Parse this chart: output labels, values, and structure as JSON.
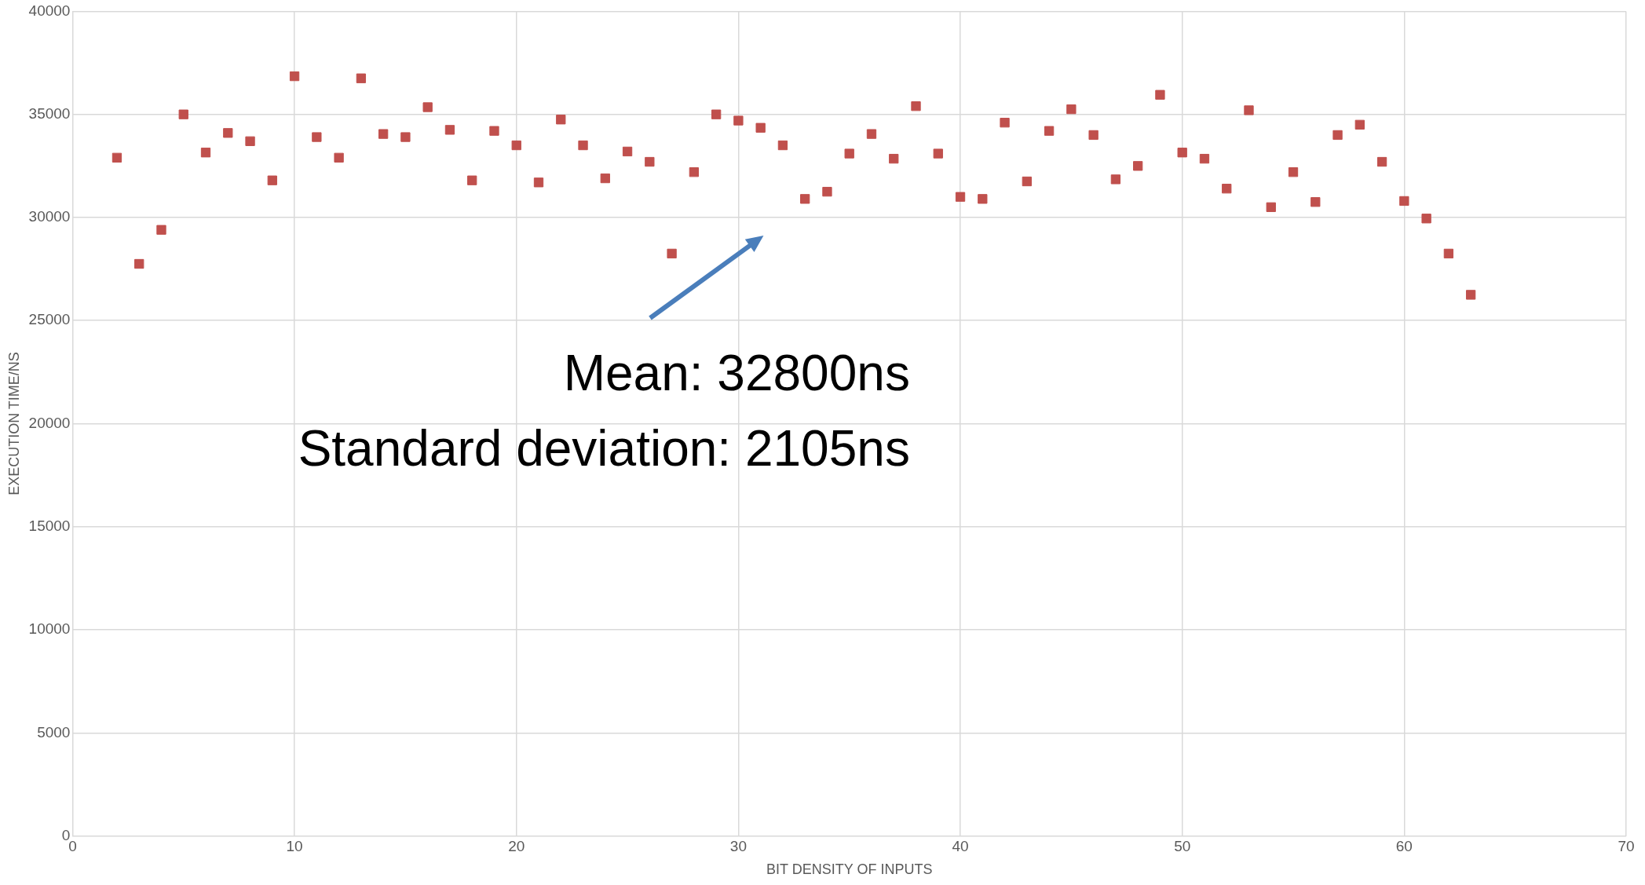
{
  "chart_data": {
    "type": "scatter",
    "xlabel": "BIT DENSITY OF INPUTS",
    "ylabel": "EXECUTION TIME/NS",
    "x": [
      2,
      3,
      4,
      5,
      6,
      7,
      8,
      9,
      10,
      11,
      12,
      13,
      14,
      15,
      16,
      17,
      18,
      19,
      20,
      21,
      22,
      23,
      24,
      25,
      26,
      27,
      28,
      29,
      30,
      31,
      32,
      33,
      34,
      35,
      36,
      37,
      38,
      39,
      40,
      41,
      42,
      43,
      44,
      45,
      46,
      47,
      48,
      49,
      50,
      51,
      52,
      53,
      54,
      55,
      56,
      57,
      58,
      59,
      60,
      61,
      62,
      63
    ],
    "values": [
      32900,
      27750,
      29400,
      35000,
      33150,
      34100,
      33700,
      31800,
      36850,
      33900,
      32900,
      36750,
      34050,
      33900,
      35350,
      34250,
      31800,
      34200,
      33500,
      31700,
      34750,
      33500,
      31900,
      33200,
      32700,
      28250,
      32200,
      35000,
      34700,
      34350,
      33500,
      30900,
      31250,
      33100,
      34050,
      32850,
      35400,
      33100,
      31000,
      30900,
      34600,
      31750,
      34200,
      35250,
      34000,
      31850,
      32500,
      35950,
      33150,
      32850,
      31400,
      35200,
      30500,
      32200,
      30750,
      34000,
      34500,
      32700,
      30800,
      29950,
      28250,
      26250
    ],
    "color": "#c0504d",
    "marker": "square",
    "grid": true,
    "xlim": [
      0,
      70
    ],
    "xticks": [
      0,
      10,
      20,
      30,
      40,
      50,
      60,
      70
    ],
    "ylim": [
      0,
      40000
    ],
    "yticks": [
      0,
      5000,
      10000,
      15000,
      20000,
      25000,
      30000,
      35000,
      40000
    ],
    "annotations": [
      "Mean: 32800ns",
      "Standard deviation: 2105ns"
    ]
  }
}
